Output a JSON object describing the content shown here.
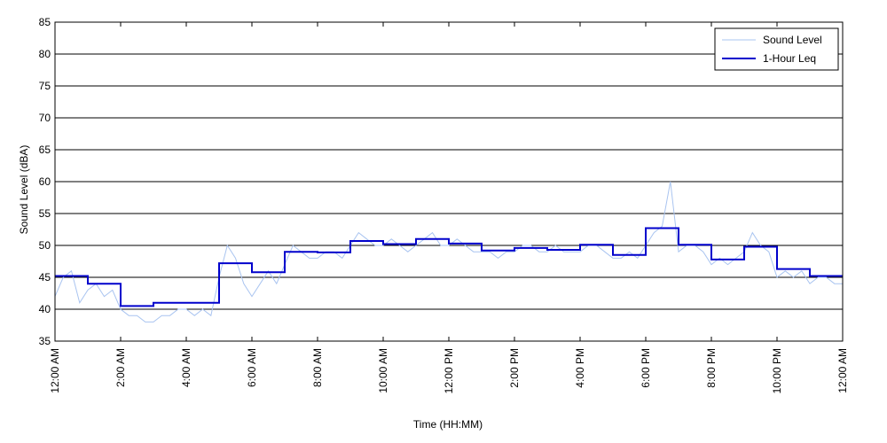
{
  "chart_data": {
    "type": "line",
    "title": "",
    "xlabel": "Time (HH:MM)",
    "ylabel": "Sound Level (dBA)",
    "ylim": [
      35,
      85
    ],
    "yticks": [
      35,
      40,
      45,
      50,
      55,
      60,
      65,
      70,
      75,
      80,
      85
    ],
    "xlim": [
      0,
      24
    ],
    "xticks": [
      {
        "hour": 0,
        "label": "12:00 AM"
      },
      {
        "hour": 2,
        "label": "2:00 AM"
      },
      {
        "hour": 4,
        "label": "4:00 AM"
      },
      {
        "hour": 6,
        "label": "6:00 AM"
      },
      {
        "hour": 8,
        "label": "8:00 AM"
      },
      {
        "hour": 10,
        "label": "10:00 AM"
      },
      {
        "hour": 12,
        "label": "12:00 PM"
      },
      {
        "hour": 14,
        "label": "2:00 PM"
      },
      {
        "hour": 16,
        "label": "4:00 PM"
      },
      {
        "hour": 18,
        "label": "6:00 PM"
      },
      {
        "hour": 20,
        "label": "8:00 PM"
      },
      {
        "hour": 22,
        "label": "10:00 PM"
      },
      {
        "hour": 24,
        "label": "12:00 AM"
      }
    ],
    "grid": "horizontal",
    "legend_position": "top-right",
    "series": [
      {
        "name": "Sound Level",
        "color": "#a9c4f0",
        "style": "thin line",
        "x_hours": [
          0,
          0.25,
          0.5,
          0.75,
          1,
          1.25,
          1.5,
          1.75,
          2,
          2.25,
          2.5,
          2.75,
          3,
          3.25,
          3.5,
          3.75,
          4,
          4.25,
          4.5,
          4.75,
          5,
          5.25,
          5.5,
          5.75,
          6,
          6.25,
          6.5,
          6.75,
          7,
          7.25,
          7.5,
          7.75,
          8,
          8.25,
          8.5,
          8.75,
          9,
          9.25,
          9.5,
          9.75,
          10,
          10.25,
          10.5,
          10.75,
          11,
          11.25,
          11.5,
          11.75,
          12,
          12.25,
          12.5,
          12.75,
          13,
          13.25,
          13.5,
          13.75,
          14,
          14.25,
          14.5,
          14.75,
          15,
          15.25,
          15.5,
          15.75,
          16,
          16.25,
          16.5,
          16.75,
          17,
          17.25,
          17.5,
          17.75,
          18,
          18.25,
          18.5,
          18.75,
          19,
          19.25,
          19.5,
          19.75,
          20,
          20.25,
          20.5,
          20.75,
          21,
          21.25,
          21.5,
          21.75,
          22,
          22.25,
          22.5,
          22.75,
          23,
          23.25,
          23.5,
          23.75,
          24
        ],
        "values": [
          42,
          45,
          46,
          41,
          43,
          44,
          42,
          43,
          40,
          39,
          39,
          38,
          38,
          39,
          39,
          40,
          40,
          39,
          40,
          39,
          45,
          50,
          48,
          44,
          42,
          44,
          46,
          44,
          47,
          50,
          49,
          48,
          48,
          49,
          49,
          48,
          50,
          52,
          51,
          50,
          50,
          51,
          50,
          49,
          50,
          51,
          52,
          50,
          50,
          51,
          50,
          49,
          49,
          49,
          48,
          49,
          49,
          50,
          50,
          49,
          49,
          50,
          49,
          49,
          49,
          50,
          50,
          49,
          48,
          48,
          49,
          48,
          50,
          52,
          53,
          60,
          49,
          50,
          50,
          49,
          47,
          48,
          47,
          48,
          49,
          52,
          50,
          49,
          45,
          46,
          45,
          46,
          44,
          45,
          45,
          44,
          44
        ]
      },
      {
        "name": "1-Hour Leq",
        "color": "#0000cc",
        "style": "step",
        "hour_start": [
          0,
          1,
          2,
          3,
          4,
          5,
          6,
          7,
          8,
          9,
          10,
          11,
          12,
          13,
          14,
          15,
          16,
          17,
          18,
          19,
          20,
          21,
          22,
          23
        ],
        "values": [
          45.2,
          44.0,
          40.5,
          41.0,
          41.0,
          47.2,
          45.8,
          49.0,
          48.9,
          50.7,
          50.2,
          51.0,
          50.3,
          49.2,
          49.6,
          49.3,
          50.1,
          48.5,
          52.7,
          50.1,
          47.8,
          49.8,
          46.3,
          45.2
        ]
      }
    ]
  }
}
